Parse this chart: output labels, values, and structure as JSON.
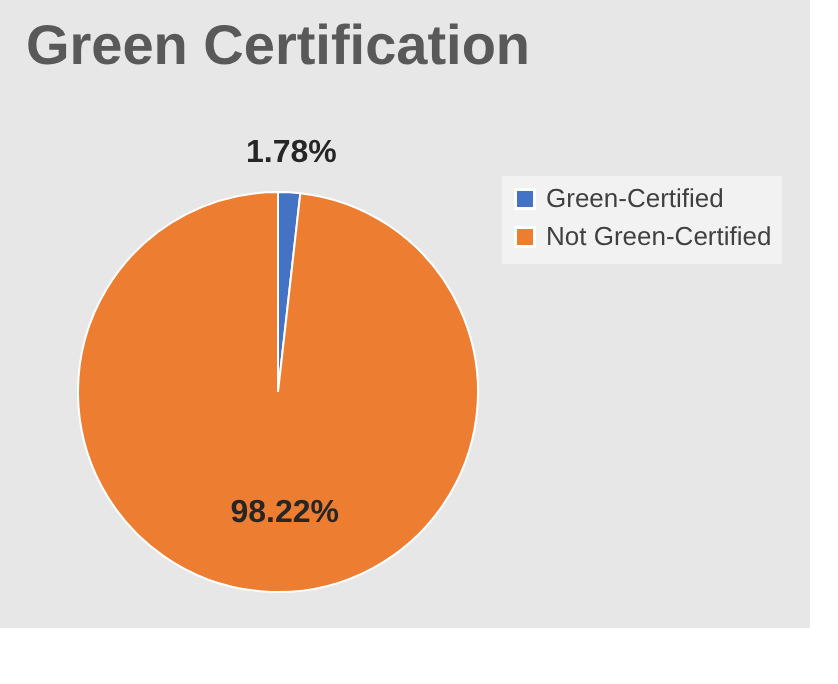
{
  "chart_data": {
    "type": "pie",
    "title": "Green Certification",
    "categories": [
      "Green-Certified",
      "Not Green-Certified"
    ],
    "values": [
      1.78,
      98.22
    ],
    "colors": [
      "#4472c4",
      "#ed7d31"
    ],
    "value_labels": [
      "1.78%",
      "98.22%"
    ],
    "legend": "right"
  }
}
